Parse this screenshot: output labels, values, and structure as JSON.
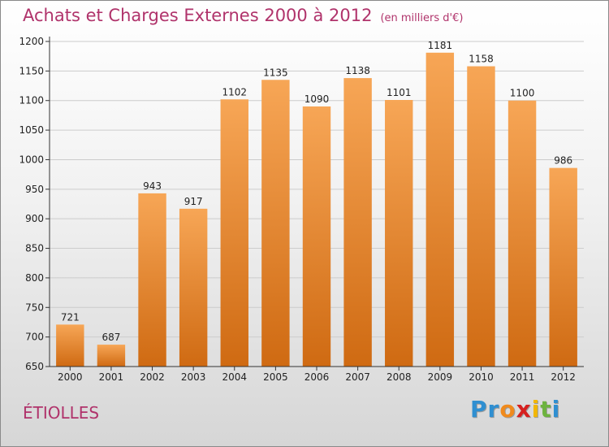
{
  "header": {
    "title": "Achats et Charges Externes 2000 à 2012",
    "unit": "(en milliers d'€)"
  },
  "commune": "ÉTIOLLES",
  "logo": {
    "letters": [
      "P",
      "r",
      "o",
      "x",
      "i",
      "t",
      "i"
    ],
    "colors": [
      "#2f8fd1",
      "#2f8fd1",
      "#f08a1c",
      "#d6201f",
      "#f2b705",
      "#6db33f",
      "#2f8fd1"
    ]
  },
  "colors": {
    "title": "#b0336b",
    "bar_top": "#f7a656",
    "bar_bottom": "#cf6a12",
    "axis": "#333333",
    "grid": "#cccccc"
  },
  "chart_data": {
    "type": "bar",
    "categories": [
      "2000",
      "2001",
      "2002",
      "2003",
      "2004",
      "2005",
      "2006",
      "2007",
      "2008",
      "2009",
      "2010",
      "2011",
      "2012"
    ],
    "values": [
      721,
      687,
      943,
      917,
      1102,
      1135,
      1090,
      1138,
      1101,
      1181,
      1158,
      1100,
      986
    ],
    "yticks": [
      650,
      700,
      750,
      800,
      850,
      900,
      950,
      1000,
      1050,
      1100,
      1150,
      1200
    ],
    "ylim": [
      650,
      1200
    ],
    "grid": true
  }
}
